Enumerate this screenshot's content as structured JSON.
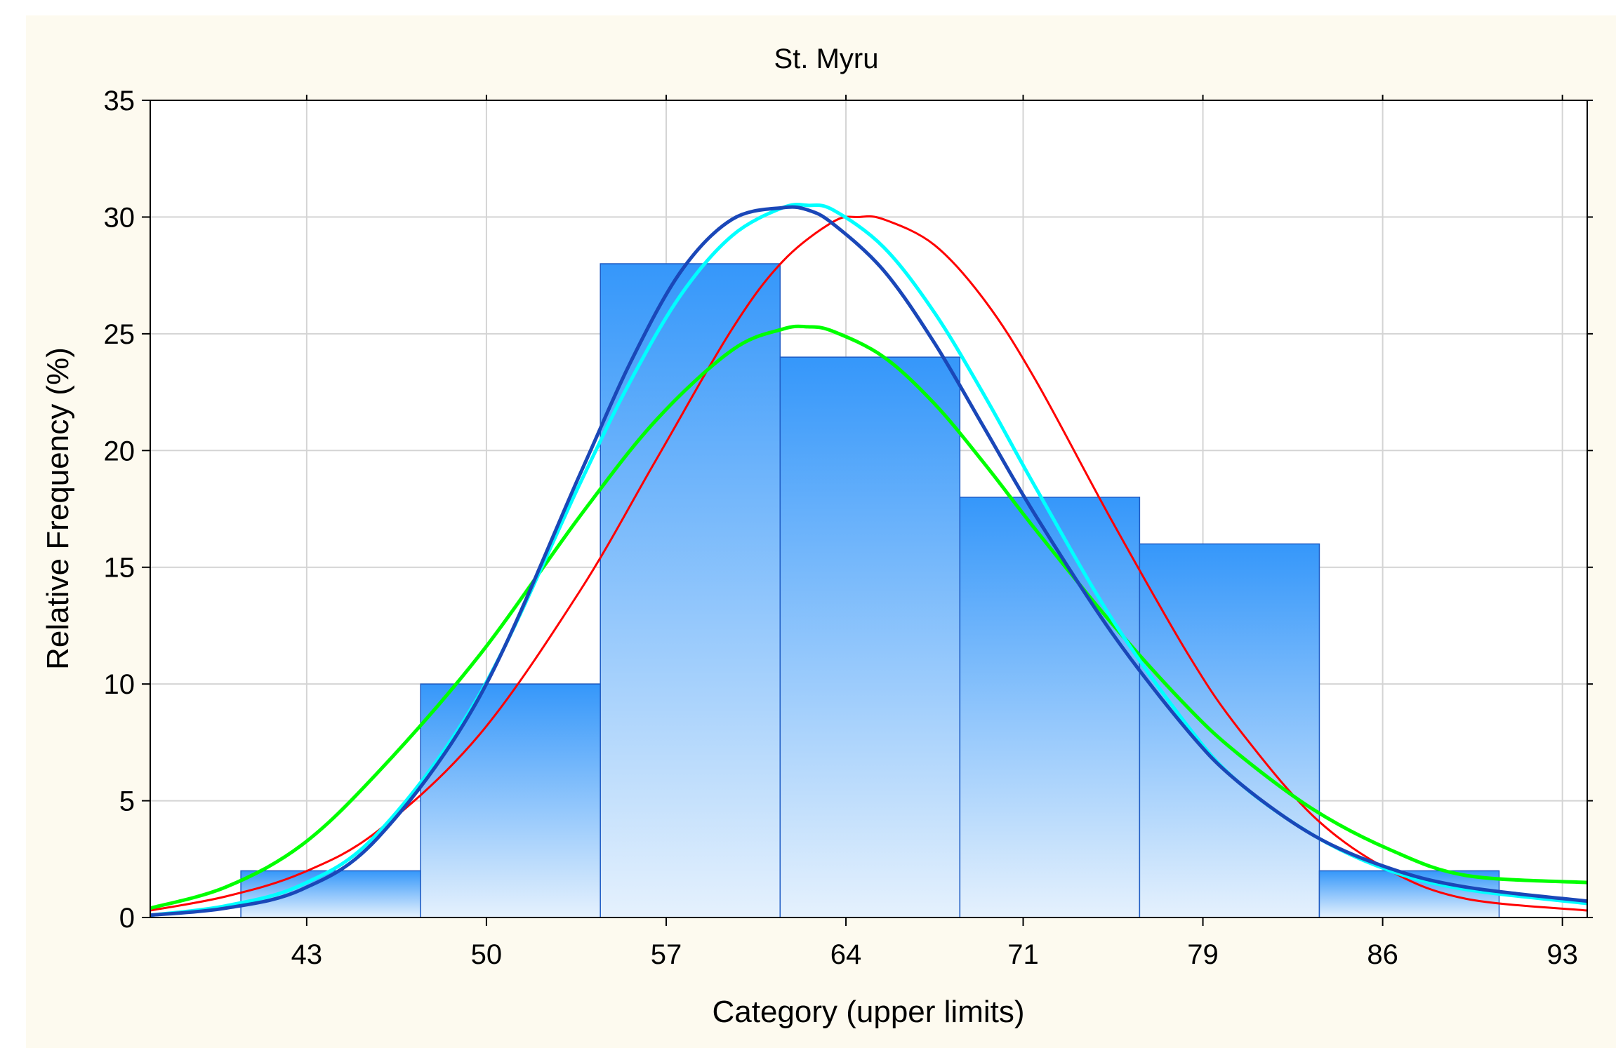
{
  "chart_data": {
    "type": "bar",
    "title": "St. Myru",
    "xlabel": "Category (upper limits)",
    "ylabel": "Relative Frequency (%)",
    "ylim": [
      0,
      35
    ],
    "xlim": [
      37.02,
      93.78
    ],
    "grid": true,
    "yticks": [
      "0",
      "5",
      "10",
      "15",
      "20",
      "25",
      "30",
      "35"
    ],
    "xticks": [
      {
        "value": 43.2,
        "label": "43"
      },
      {
        "value": 50.3,
        "label": "50"
      },
      {
        "value": 57.4,
        "label": "57"
      },
      {
        "value": 64.5,
        "label": "64"
      },
      {
        "value": 71.5,
        "label": "71"
      },
      {
        "value": 78.6,
        "label": "79"
      },
      {
        "value": 85.7,
        "label": "86"
      },
      {
        "value": 92.8,
        "label": "93"
      }
    ],
    "bins": [
      {
        "from": 40.6,
        "to": 47.7,
        "value": 2
      },
      {
        "from": 47.7,
        "to": 54.8,
        "value": 10
      },
      {
        "from": 54.8,
        "to": 61.9,
        "value": 28
      },
      {
        "from": 61.9,
        "to": 69.0,
        "value": 24
      },
      {
        "from": 69.0,
        "to": 76.1,
        "value": 18
      },
      {
        "from": 76.1,
        "to": 83.2,
        "value": 16
      },
      {
        "from": 83.2,
        "to": 90.3,
        "value": 2
      }
    ],
    "series": [
      {
        "name": "red-fit",
        "color": "#ff0000",
        "x": [
          37.02,
          40,
          43,
          46,
          50,
          54,
          57,
          60,
          62,
          64,
          65,
          66,
          68,
          70,
          72,
          75,
          78,
          80,
          83,
          86,
          89,
          93.78
        ],
        "values": [
          0.3,
          0.9,
          1.9,
          3.7,
          7.8,
          14.0,
          19.6,
          25.2,
          28.1,
          29.8,
          30.0,
          29.9,
          28.8,
          26.4,
          23.0,
          17.0,
          11.3,
          8.1,
          4.3,
          2.0,
          0.8,
          0.3
        ]
      },
      {
        "name": "green-fit",
        "color": "#00ff00",
        "x": [
          37.02,
          40,
          43,
          46,
          50,
          54,
          57,
          60,
          62,
          63,
          64,
          66,
          68,
          70,
          72,
          75,
          78,
          80,
          83,
          86,
          89,
          93.78
        ],
        "values": [
          0.4,
          1.3,
          3.1,
          6.2,
          11.2,
          17.2,
          21.3,
          24.3,
          25.2,
          25.3,
          25.1,
          24.0,
          22.0,
          19.4,
          16.6,
          12.6,
          9.0,
          7.0,
          4.6,
          2.9,
          1.8,
          1.5
        ]
      },
      {
        "name": "cyan-fit",
        "color": "#00ffff",
        "x": [
          37.02,
          40,
          43,
          46,
          50,
          54,
          56,
          58,
          60,
          62,
          63,
          64,
          66,
          68,
          70,
          72,
          75,
          78,
          80,
          83,
          86,
          89,
          93.78
        ],
        "values": [
          0.1,
          0.5,
          1.4,
          3.6,
          9.5,
          18.6,
          23.0,
          26.7,
          29.2,
          30.4,
          30.5,
          30.3,
          28.7,
          25.9,
          22.3,
          18.4,
          12.8,
          8.2,
          5.8,
          3.5,
          2.0,
          1.2,
          0.6
        ]
      },
      {
        "name": "blue-fit",
        "color": "#1a47b8",
        "x": [
          37.02,
          40,
          43,
          46,
          50,
          54,
          56,
          58,
          60,
          62,
          63,
          64,
          66,
          68,
          70,
          72,
          75,
          78,
          80,
          83,
          86,
          89,
          93.78
        ],
        "values": [
          0.1,
          0.4,
          1.2,
          3.4,
          9.4,
          19.0,
          23.8,
          27.7,
          29.9,
          30.4,
          30.3,
          29.7,
          27.7,
          24.6,
          20.9,
          17.2,
          12.2,
          8.0,
          5.8,
          3.5,
          2.1,
          1.3,
          0.7
        ]
      }
    ],
    "colors": {
      "frame_background": "#fdfaef",
      "plot_background": "#ffffff",
      "grid": "#d4d4d4",
      "bar_top": "#3597fa",
      "bar_bottom": "#e5f1fd",
      "bar_stroke": "#1f5cc4"
    }
  }
}
